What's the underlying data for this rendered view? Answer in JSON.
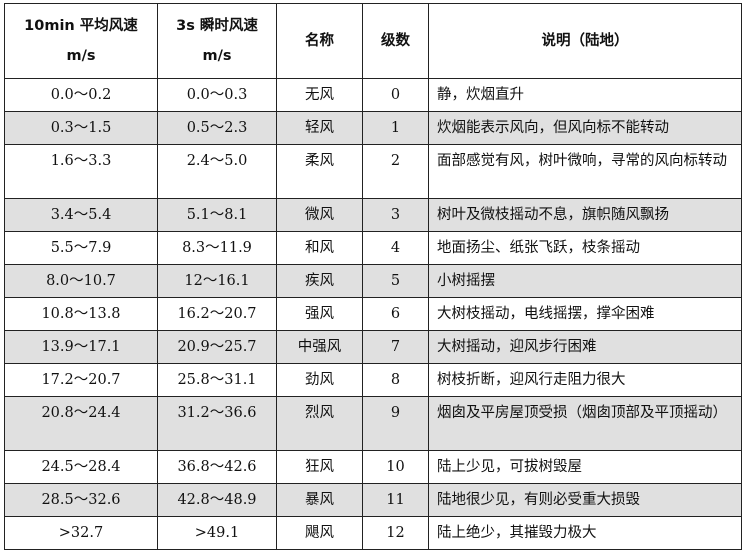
{
  "headers": {
    "avg_speed": "10min 平均风速",
    "avg_unit": "m/s",
    "gust_speed": "3s 瞬时风速",
    "gust_unit": "m/s",
    "name": "名称",
    "grade": "级数",
    "desc": "说明（陆地）"
  },
  "shade_color": "#e0e0e0",
  "rows": [
    {
      "avg": "0.0～0.2",
      "gust": "0.0～0.3",
      "name": "无风",
      "grade": "0",
      "desc": "静，炊烟直升"
    },
    {
      "avg": "0.3～1.5",
      "gust": "0.5～2.3",
      "name": "轻风",
      "grade": "1",
      "desc": "炊烟能表示风向，但风向标不能转动"
    },
    {
      "avg": "1.6～3.3",
      "gust": "2.4～5.0",
      "name": "柔风",
      "grade": "2",
      "desc": "面部感觉有风，树叶微响，寻常的风向标转动"
    },
    {
      "avg": "3.4～5.4",
      "gust": "5.1～8.1",
      "name": "微风",
      "grade": "3",
      "desc": "树叶及微枝摇动不息，旗帜随风飘扬"
    },
    {
      "avg": "5.5～7.9",
      "gust": "8.3～11.9",
      "name": "和风",
      "grade": "4",
      "desc": "地面扬尘、纸张飞跃，枝条摇动"
    },
    {
      "avg": "8.0～10.7",
      "gust": "12～16.1",
      "name": "疾风",
      "grade": "5",
      "desc": "小树摇摆"
    },
    {
      "avg": "10.8～13.8",
      "gust": "16.2～20.7",
      "name": "强风",
      "grade": "6",
      "desc": "大树枝摇动，电线摇摆，撑伞困难"
    },
    {
      "avg": "13.9～17.1",
      "gust": "20.9～25.7",
      "name": "中强风",
      "grade": "7",
      "desc": "大树摇动，迎风步行困难"
    },
    {
      "avg": "17.2～20.7",
      "gust": "25.8～31.1",
      "name": "劲风",
      "grade": "8",
      "desc": "树枝折断，迎风行走阻力很大"
    },
    {
      "avg": "20.8～24.4",
      "gust": "31.2～36.6",
      "name": "烈风",
      "grade": "9",
      "desc": "烟囱及平房屋顶受损（烟囱顶部及平顶摇动）"
    },
    {
      "avg": "24.5～28.4",
      "gust": "36.8～42.6",
      "name": "狂风",
      "grade": "10",
      "desc": "陆上少见，可拔树毁屋"
    },
    {
      "avg": "28.5～32.6",
      "gust": "42.8～48.9",
      "name": "暴风",
      "grade": "11",
      "desc": "陆地很少见，有则必受重大损毁"
    },
    {
      "avg": ">32.7",
      "gust": ">49.1",
      "name": "飓风",
      "grade": "12",
      "desc": "陆上绝少，其摧毁力极大"
    }
  ]
}
